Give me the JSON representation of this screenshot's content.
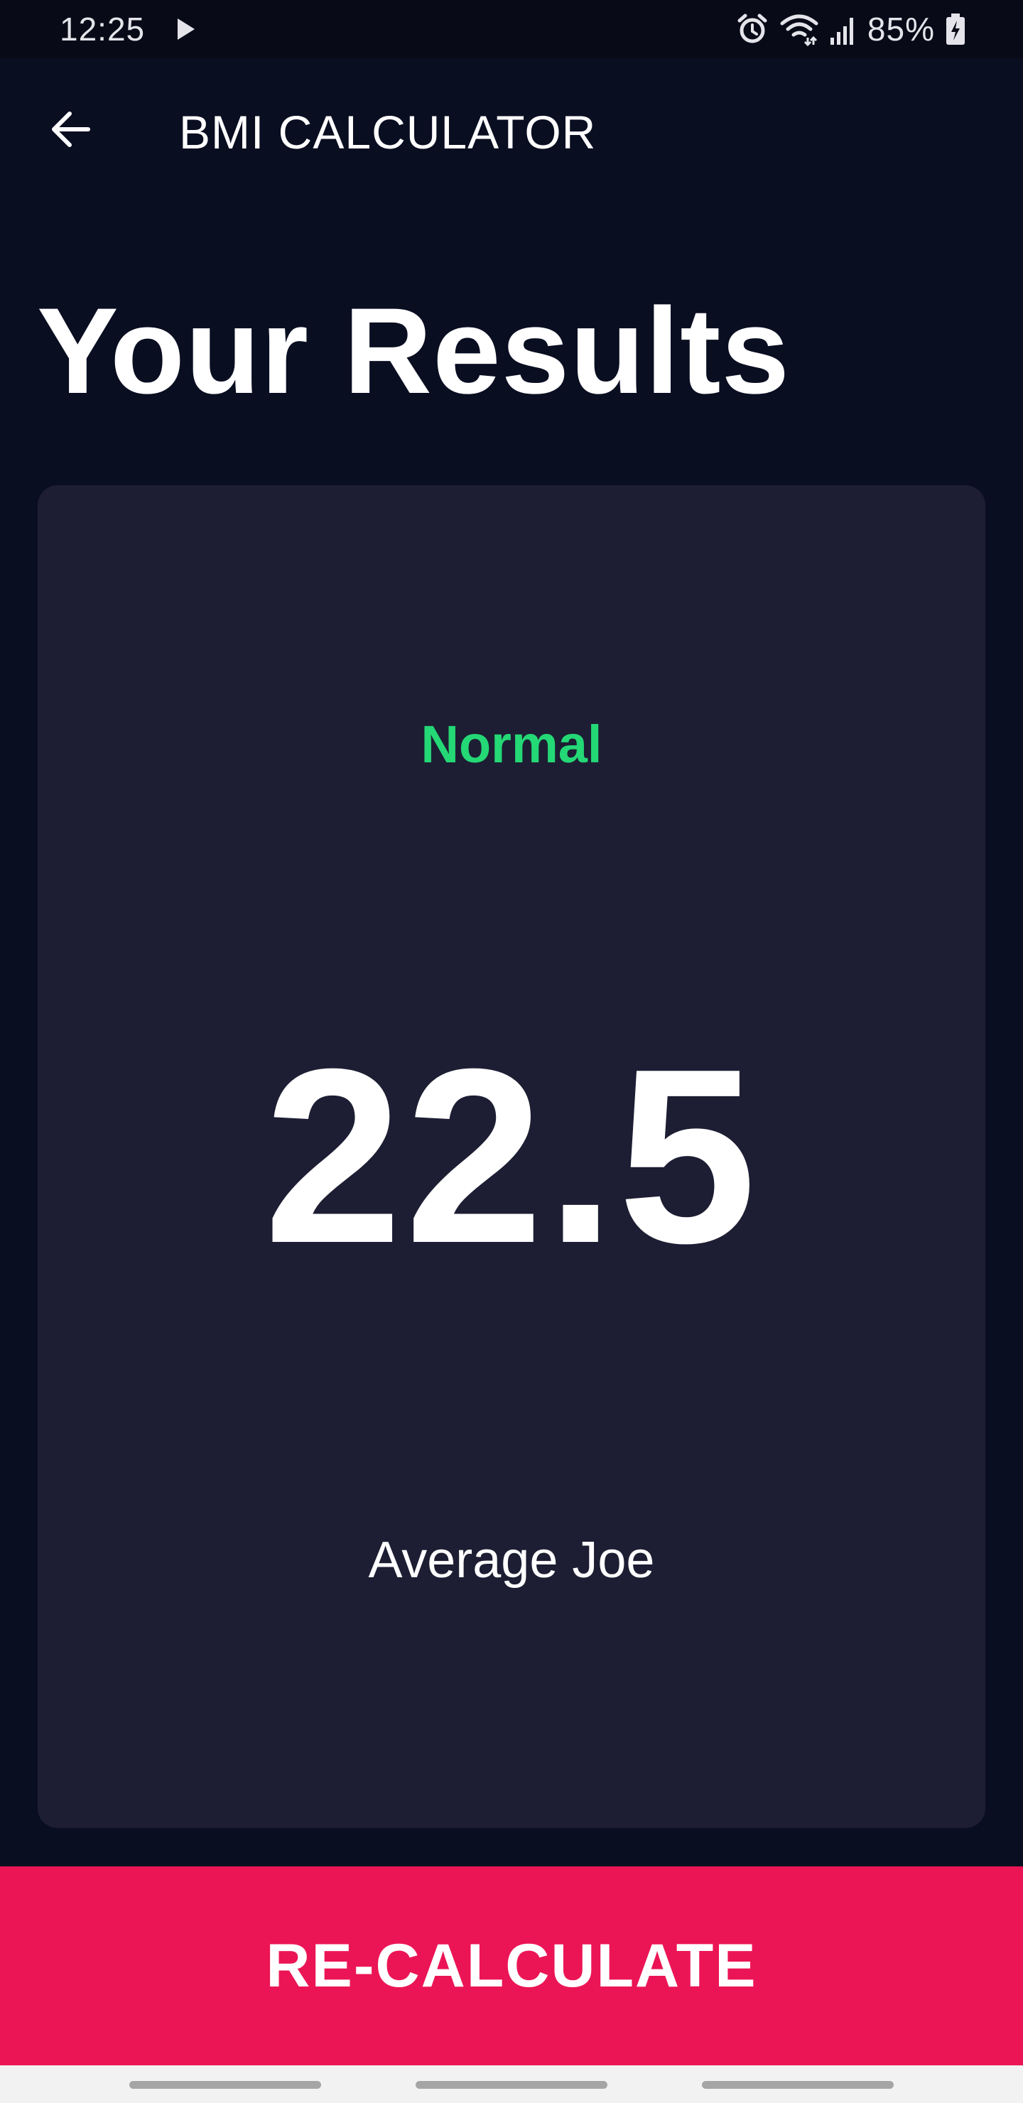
{
  "status_bar": {
    "time": "12:25",
    "battery": "85%",
    "icons": [
      "play-icon",
      "alarm-icon",
      "wifi-icon",
      "signal-icon",
      "battery-icon"
    ]
  },
  "app_bar": {
    "back_icon": "arrow-left-icon",
    "title": "BMI CALCULATOR"
  },
  "main": {
    "title": "Your Results",
    "result": {
      "category": "Normal",
      "value": "22.5",
      "description": "Average Joe"
    }
  },
  "footer": {
    "button_label": "RE-CALCULATE"
  },
  "colors": {
    "background": "#0a0e21",
    "card": "#1d1e33",
    "category": "#24d876",
    "button": "#eb1555"
  }
}
